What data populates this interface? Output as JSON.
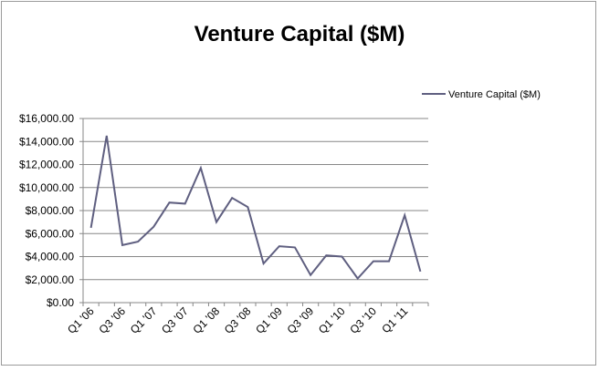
{
  "chart_data": {
    "type": "line",
    "title": "Venture Capital ($M)",
    "xlabel": "",
    "ylabel": "",
    "x": [
      "Q1 '06",
      "Q2 '06",
      "Q3 '06",
      "Q4 '06",
      "Q1 '07",
      "Q2 '07",
      "Q3 '07",
      "Q4 '07",
      "Q1 '08",
      "Q2 '08",
      "Q3 '08",
      "Q4 '08",
      "Q1 '09",
      "Q2 '09",
      "Q3 '09",
      "Q4 '09",
      "Q1 '10",
      "Q2 '10",
      "Q3 '10",
      "Q4 '10",
      "Q1 '11",
      "Q2 '11"
    ],
    "x_tick_labels": [
      "Q1 '06",
      "Q3 '06",
      "Q1 '07",
      "Q3 '07",
      "Q1 '08",
      "Q3 '08",
      "Q1 '09",
      "Q3 '09",
      "Q1 '10",
      "Q3 '10",
      "Q1 '11"
    ],
    "series": [
      {
        "name": "Venture Capital  ($M)",
        "color": "#5f5f80",
        "values": [
          6500,
          14500,
          5000,
          5300,
          6600,
          8700,
          8600,
          11700,
          7000,
          9100,
          8300,
          3400,
          4900,
          4800,
          2400,
          4100,
          4000,
          2100,
          3600,
          3600,
          7600,
          2700
        ]
      }
    ],
    "ylim": [
      0,
      16000
    ],
    "y_ticks": [
      0,
      2000,
      4000,
      6000,
      8000,
      10000,
      12000,
      14000,
      16000
    ],
    "y_tick_labels": [
      "$0.00",
      "$2,000.00",
      "$4,000.00",
      "$6,000.00",
      "$8,000.00",
      "$10,000.00",
      "$12,000.00",
      "$14,000.00",
      "$16,000.00"
    ],
    "grid": true,
    "legend_position": "right"
  }
}
